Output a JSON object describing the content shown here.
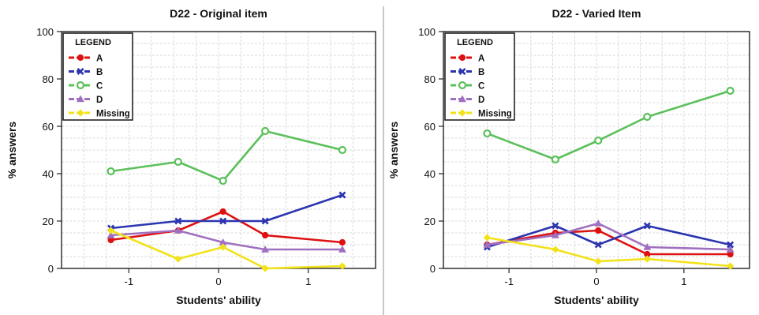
{
  "chart_data": [
    {
      "type": "line",
      "title": "D22 - Original item",
      "xlabel": "Students' ability",
      "ylabel": "% answers",
      "xlim": [
        -1.75,
        1.75
      ],
      "ylim": [
        0,
        100
      ],
      "x_ticks": [
        -1,
        0,
        1
      ],
      "y_ticks": [
        0,
        20,
        40,
        60,
        80,
        100
      ],
      "grid": true,
      "legend_title": "LEGEND",
      "legend_position": "top-left",
      "x": [
        -1.2,
        -0.45,
        0.05,
        0.52,
        1.38
      ],
      "series": [
        {
          "name": "A",
          "color": "#dd1111",
          "marker": "circle-filled",
          "values": [
            12,
            16,
            24,
            14,
            11
          ]
        },
        {
          "name": "B",
          "color": "#2b35b0",
          "marker": "x",
          "values": [
            17,
            20,
            20,
            20,
            31
          ]
        },
        {
          "name": "C",
          "color": "#5cc05c",
          "marker": "circle-open",
          "values": [
            41,
            45,
            37,
            58,
            50
          ]
        },
        {
          "name": "D",
          "color": "#a070c0",
          "marker": "triangle",
          "values": [
            14,
            16,
            11,
            8,
            8
          ]
        },
        {
          "name": "Missing",
          "color": "#f2e21a",
          "marker": "diamond",
          "values": [
            16,
            4,
            9,
            0,
            1
          ]
        }
      ]
    },
    {
      "type": "line",
      "title": "D22 - Varied Item",
      "xlabel": "Students' ability",
      "ylabel": "% answers",
      "xlim": [
        -1.75,
        1.75
      ],
      "ylim": [
        0,
        100
      ],
      "x_ticks": [
        -1,
        0,
        1
      ],
      "y_ticks": [
        0,
        20,
        40,
        60,
        80,
        100
      ],
      "grid": true,
      "legend_title": "LEGEND",
      "legend_position": "top-left",
      "x": [
        -1.25,
        -0.47,
        0.02,
        0.58,
        1.53
      ],
      "series": [
        {
          "name": "A",
          "color": "#dd1111",
          "marker": "circle-filled",
          "values": [
            10,
            15,
            16,
            6,
            6
          ]
        },
        {
          "name": "B",
          "color": "#2b35b0",
          "marker": "x",
          "values": [
            9,
            18,
            10,
            18,
            10
          ]
        },
        {
          "name": "C",
          "color": "#5cc05c",
          "marker": "circle-open",
          "values": [
            57,
            46,
            54,
            64,
            75
          ]
        },
        {
          "name": "D",
          "color": "#a070c0",
          "marker": "triangle",
          "values": [
            10,
            14,
            19,
            9,
            8
          ]
        },
        {
          "name": "Missing",
          "color": "#f2e21a",
          "marker": "diamond",
          "values": [
            13,
            8,
            3,
            4,
            1
          ]
        }
      ]
    }
  ]
}
